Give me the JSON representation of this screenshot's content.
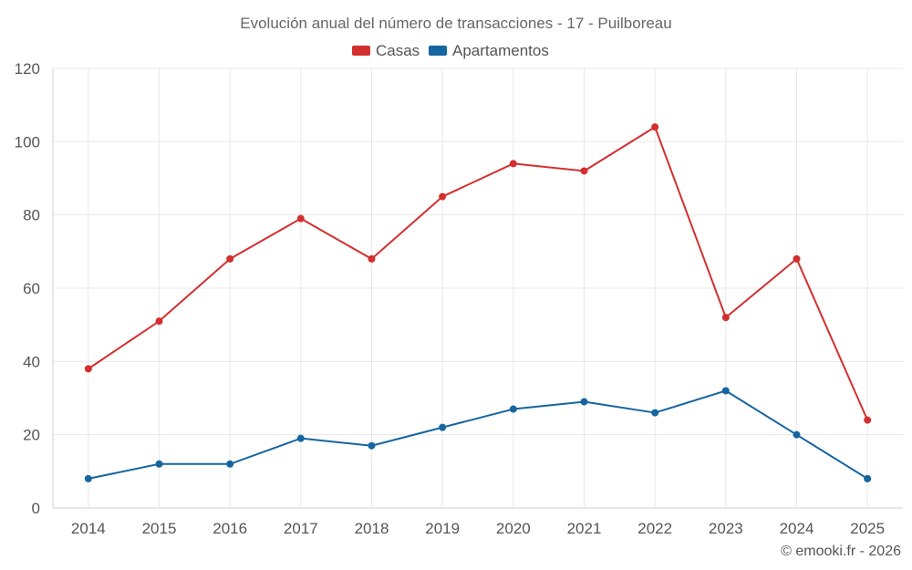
{
  "chart_data": {
    "type": "line",
    "title": "Evolución anual del número de transacciones - 17 - Puilboreau",
    "categories": [
      "2014",
      "2015",
      "2016",
      "2017",
      "2018",
      "2019",
      "2020",
      "2021",
      "2022",
      "2023",
      "2024",
      "2025"
    ],
    "series": [
      {
        "name": "Casas",
        "color": "#d32f2f",
        "values": [
          38,
          51,
          68,
          79,
          68,
          85,
          94,
          92,
          104,
          52,
          68,
          24
        ]
      },
      {
        "name": "Apartamentos",
        "color": "#1565a0",
        "values": [
          8,
          12,
          12,
          19,
          17,
          22,
          27,
          29,
          26,
          32,
          20,
          8
        ]
      }
    ],
    "ylim": [
      0,
      120
    ],
    "yticks": [
      0,
      20,
      40,
      60,
      80,
      100,
      120
    ],
    "xlabel": "",
    "ylabel": "",
    "grid": true,
    "legend_position": "top-center"
  },
  "credit": "© emooki.fr - 2026"
}
